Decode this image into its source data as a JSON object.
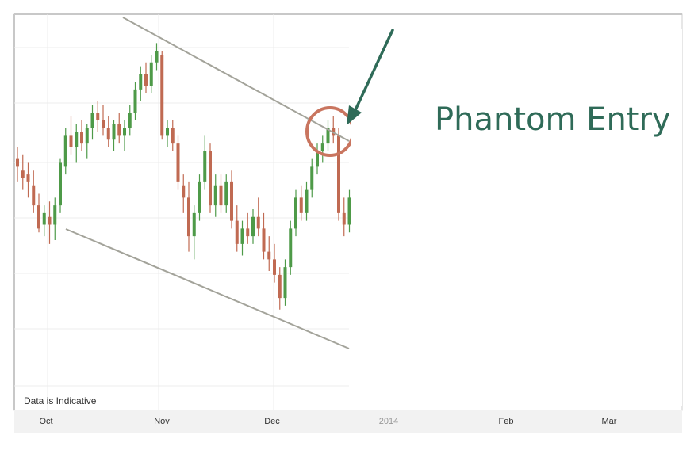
{
  "chart_data": {
    "type": "candlestick",
    "x_tick_labels": [
      "Oct",
      "Nov",
      "Dec",
      "2014",
      "Feb",
      "Mar"
    ],
    "footer_note": "Data is Indicative",
    "annotation": "Phantom Entry",
    "grid": true,
    "colors": {
      "bullish": "#4e9a48",
      "bearish": "#c06a52",
      "channel": "#a3a39a",
      "arrow": "#2f6b58",
      "circle": "#c9755f",
      "annotation_text": "#2f6b58"
    },
    "ohlc": [
      {
        "o": 70,
        "h": 73,
        "l": 64,
        "c": 68
      },
      {
        "o": 67,
        "h": 71,
        "l": 62,
        "c": 65
      },
      {
        "o": 66,
        "h": 69,
        "l": 60,
        "c": 64
      },
      {
        "o": 63,
        "h": 67,
        "l": 56,
        "c": 58
      },
      {
        "o": 58,
        "h": 61,
        "l": 51,
        "c": 52
      },
      {
        "o": 53,
        "h": 58,
        "l": 50,
        "c": 56
      },
      {
        "o": 55,
        "h": 59,
        "l": 48,
        "c": 53
      },
      {
        "o": 53,
        "h": 60,
        "l": 49,
        "c": 58
      },
      {
        "o": 58,
        "h": 70,
        "l": 56,
        "c": 69
      },
      {
        "o": 68,
        "h": 78,
        "l": 66,
        "c": 76
      },
      {
        "o": 76,
        "h": 81,
        "l": 71,
        "c": 73
      },
      {
        "o": 73,
        "h": 79,
        "l": 69,
        "c": 77
      },
      {
        "o": 77,
        "h": 80,
        "l": 72,
        "c": 74
      },
      {
        "o": 74,
        "h": 79,
        "l": 70,
        "c": 78
      },
      {
        "o": 78,
        "h": 84,
        "l": 75,
        "c": 82
      },
      {
        "o": 82,
        "h": 85,
        "l": 77,
        "c": 80
      },
      {
        "o": 80,
        "h": 84,
        "l": 76,
        "c": 78
      },
      {
        "o": 78,
        "h": 81,
        "l": 73,
        "c": 75
      },
      {
        "o": 75,
        "h": 80,
        "l": 72,
        "c": 79
      },
      {
        "o": 79,
        "h": 82,
        "l": 74,
        "c": 76
      },
      {
        "o": 76,
        "h": 80,
        "l": 72,
        "c": 78
      },
      {
        "o": 78,
        "h": 84,
        "l": 76,
        "c": 82
      },
      {
        "o": 82,
        "h": 90,
        "l": 80,
        "c": 88
      },
      {
        "o": 88,
        "h": 94,
        "l": 85,
        "c": 92
      },
      {
        "o": 92,
        "h": 95,
        "l": 87,
        "c": 89
      },
      {
        "o": 89,
        "h": 97,
        "l": 87,
        "c": 95
      },
      {
        "o": 95,
        "h": 100,
        "l": 93,
        "c": 98
      },
      {
        "o": 97,
        "h": 98,
        "l": 75,
        "c": 76
      },
      {
        "o": 76,
        "h": 80,
        "l": 73,
        "c": 78
      },
      {
        "o": 78,
        "h": 80,
        "l": 72,
        "c": 74
      },
      {
        "o": 74,
        "h": 76,
        "l": 62,
        "c": 64
      },
      {
        "o": 63,
        "h": 66,
        "l": 56,
        "c": 60
      },
      {
        "o": 60,
        "h": 64,
        "l": 46,
        "c": 50
      },
      {
        "o": 50,
        "h": 58,
        "l": 44,
        "c": 56
      },
      {
        "o": 56,
        "h": 66,
        "l": 54,
        "c": 64
      },
      {
        "o": 64,
        "h": 76,
        "l": 62,
        "c": 72
      },
      {
        "o": 72,
        "h": 74,
        "l": 56,
        "c": 58
      },
      {
        "o": 58,
        "h": 66,
        "l": 55,
        "c": 63
      },
      {
        "o": 63,
        "h": 66,
        "l": 56,
        "c": 58
      },
      {
        "o": 58,
        "h": 66,
        "l": 56,
        "c": 64
      },
      {
        "o": 64,
        "h": 67,
        "l": 52,
        "c": 54
      },
      {
        "o": 54,
        "h": 58,
        "l": 46,
        "c": 48
      },
      {
        "o": 48,
        "h": 54,
        "l": 45,
        "c": 52
      },
      {
        "o": 52,
        "h": 56,
        "l": 48,
        "c": 50
      },
      {
        "o": 50,
        "h": 57,
        "l": 48,
        "c": 55
      },
      {
        "o": 55,
        "h": 60,
        "l": 50,
        "c": 52
      },
      {
        "o": 52,
        "h": 56,
        "l": 44,
        "c": 46
      },
      {
        "o": 46,
        "h": 50,
        "l": 41,
        "c": 44
      },
      {
        "o": 44,
        "h": 48,
        "l": 38,
        "c": 40
      },
      {
        "o": 40,
        "h": 42,
        "l": 31,
        "c": 34
      },
      {
        "o": 34,
        "h": 44,
        "l": 32,
        "c": 42
      },
      {
        "o": 42,
        "h": 54,
        "l": 40,
        "c": 52
      },
      {
        "o": 52,
        "h": 62,
        "l": 50,
        "c": 60
      },
      {
        "o": 60,
        "h": 63,
        "l": 54,
        "c": 56
      },
      {
        "o": 56,
        "h": 64,
        "l": 54,
        "c": 62
      },
      {
        "o": 62,
        "h": 70,
        "l": 60,
        "c": 68
      },
      {
        "o": 68,
        "h": 74,
        "l": 66,
        "c": 72
      },
      {
        "o": 72,
        "h": 76,
        "l": 69,
        "c": 74
      },
      {
        "o": 74,
        "h": 80,
        "l": 72,
        "c": 78
      },
      {
        "o": 78,
        "h": 81,
        "l": 74,
        "c": 76
      },
      {
        "o": 76,
        "h": 78,
        "l": 54,
        "c": 56
      },
      {
        "o": 56,
        "h": 60,
        "l": 50,
        "c": 53
      },
      {
        "o": 53,
        "h": 62,
        "l": 51,
        "c": 60
      }
    ]
  }
}
